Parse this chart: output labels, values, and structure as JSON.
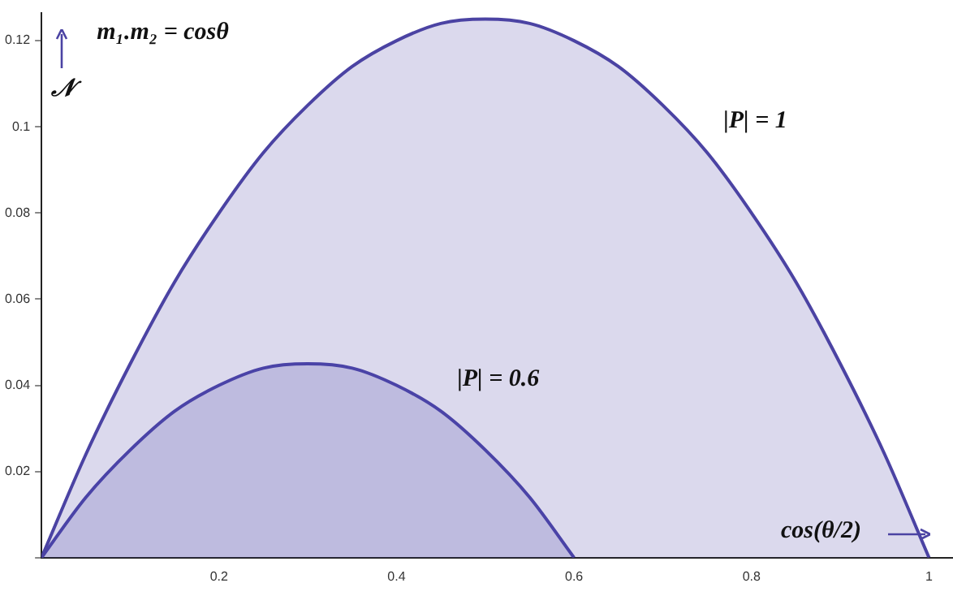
{
  "chart_data": {
    "type": "area",
    "title": "m₁.m₂ = cosθ",
    "xlabel": "cos(θ/2)",
    "ylabel": "𝒩",
    "xlim": [
      0,
      1.027
    ],
    "ylim": [
      0,
      0.1265
    ],
    "xticks": [
      0.2,
      0.4,
      0.6,
      0.8,
      1.0
    ],
    "yticks": [
      {
        "value": 0,
        "label": null
      },
      0.02,
      0.04,
      0.06,
      0.08,
      0.1,
      0.12
    ],
    "grid": false,
    "legend": false,
    "marker": "none",
    "line_style": "solid",
    "series": [
      {
        "name": "|P| = 1",
        "color": "#4b43a3",
        "x": [
          0,
          0.05,
          0.1,
          0.15,
          0.2,
          0.25,
          0.3,
          0.35,
          0.4,
          0.45,
          0.5,
          0.55,
          0.6,
          0.65,
          0.7,
          0.75,
          0.8,
          0.85,
          0.9,
          0.95,
          1.0
        ],
        "values": [
          0,
          0.024,
          0.045,
          0.064,
          0.08,
          0.094,
          0.105,
          0.114,
          0.12,
          0.124,
          0.125,
          0.124,
          0.12,
          0.114,
          0.105,
          0.094,
          0.08,
          0.064,
          0.045,
          0.024,
          0
        ]
      },
      {
        "name": "|P| = 0.6",
        "color": "#4a44a8",
        "x": [
          0,
          0.05,
          0.1,
          0.15,
          0.2,
          0.25,
          0.3,
          0.35,
          0.4,
          0.45,
          0.5,
          0.55,
          0.6
        ],
        "values": [
          0,
          0.014,
          0.025,
          0.034,
          0.04,
          0.044,
          0.045,
          0.044,
          0.04,
          0.034,
          0.025,
          0.014,
          0
        ]
      }
    ]
  }
}
